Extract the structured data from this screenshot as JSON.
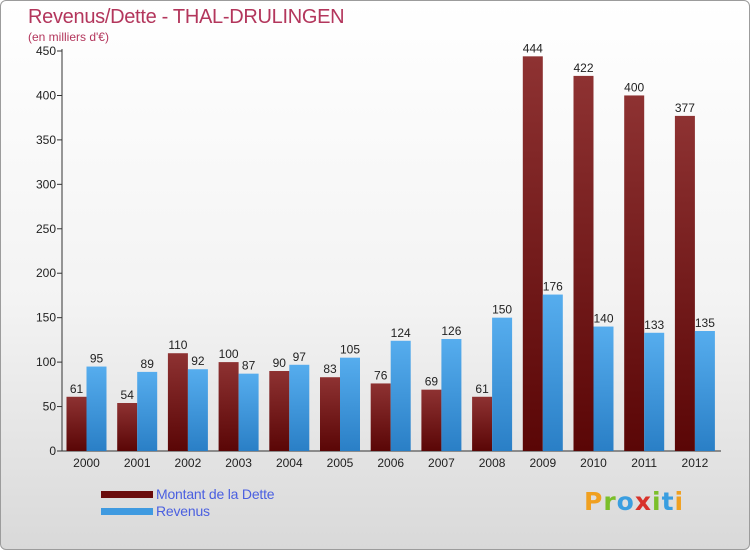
{
  "chart_data": {
    "type": "bar",
    "title": "Revenus/Dette - THAL-DRULINGEN",
    "subtitle": "(en milliers d'€)",
    "categories": [
      "2000",
      "2001",
      "2002",
      "2003",
      "2004",
      "2005",
      "2006",
      "2007",
      "2008",
      "2009",
      "2010",
      "2011",
      "2012"
    ],
    "series": [
      {
        "name": "Montant de la Dette",
        "color": "#7a1818",
        "values": [
          61,
          54,
          110,
          100,
          90,
          83,
          76,
          69,
          61,
          444,
          422,
          400,
          377
        ]
      },
      {
        "name": "Revenus",
        "color": "#3f9ae0",
        "values": [
          95,
          89,
          92,
          87,
          97,
          105,
          124,
          126,
          150,
          176,
          140,
          133,
          135
        ]
      }
    ],
    "yticks": [
      0,
      50,
      100,
      150,
      200,
      250,
      300,
      350,
      400,
      450
    ],
    "ylim": [
      0,
      450
    ],
    "grid": false,
    "legend_position": "bottom-left"
  },
  "brand": {
    "logo_letters": [
      "P",
      "r",
      "o",
      "x",
      "i",
      "t",
      "i"
    ],
    "logo_colors": [
      "#f0a020",
      "#7bbf2a",
      "#3a9ee0",
      "#d8322a",
      "#7bbf2a",
      "#3a9ee0",
      "#f0a020"
    ]
  }
}
